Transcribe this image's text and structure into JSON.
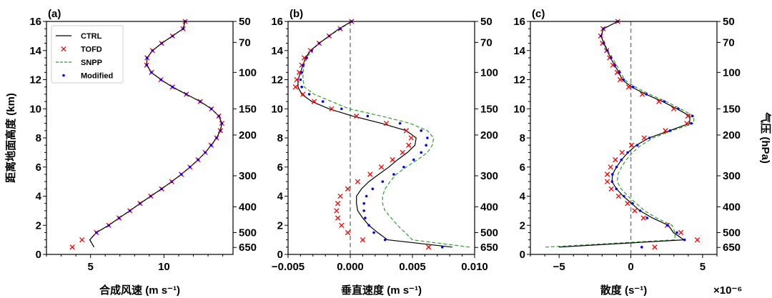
{
  "chart_data": {
    "type": "line",
    "heights_km": [
      0.5,
      1.0,
      1.5,
      2.0,
      2.5,
      3.0,
      3.5,
      4.0,
      4.5,
      5.0,
      5.5,
      6.0,
      6.5,
      7.0,
      7.5,
      8.0,
      8.5,
      9.0,
      9.5,
      10.0,
      10.5,
      11.0,
      11.5,
      12.0,
      12.5,
      13.0,
      13.5,
      14.0,
      14.5,
      15.0,
      15.5,
      16.0
    ],
    "legend": {
      "placement": "top-left",
      "entries": [
        {
          "name": "CTRL",
          "style": "line",
          "color": "#000000"
        },
        {
          "name": "TOFD",
          "style": "x-marker",
          "color": "#ff0000"
        },
        {
          "name": "SNPP",
          "style": "dashed",
          "color": "#2ca02c"
        },
        {
          "name": "Modified",
          "style": "dot",
          "color": "#0000ff"
        }
      ]
    },
    "ylabel": "距离地面高度 (km)",
    "y2label": "气压 (hPa)",
    "ylim": [
      0,
      16
    ],
    "yticks": [
      {
        "v": 0,
        "label": "0"
      },
      {
        "v": 2,
        "label": "2"
      },
      {
        "v": 4,
        "label": "4"
      },
      {
        "v": 6,
        "label": "6"
      },
      {
        "v": 8,
        "label": "8"
      },
      {
        "v": 10,
        "label": "10"
      },
      {
        "v": 12,
        "label": "12"
      },
      {
        "v": 14,
        "label": "14"
      },
      {
        "v": 16,
        "label": "16"
      }
    ],
    "pressure_ticks": [
      {
        "h": 16,
        "label": "50"
      },
      {
        "h": 14.56,
        "label": "70"
      },
      {
        "h": 12.5,
        "label": "100"
      },
      {
        "h": 10.0,
        "label": "150"
      },
      {
        "h": 8.2,
        "label": "200"
      },
      {
        "h": 5.4,
        "label": "300"
      },
      {
        "h": 3.27,
        "label": "400"
      },
      {
        "h": 1.5,
        "label": "500"
      },
      {
        "h": 0.48,
        "label": "650"
      }
    ],
    "panels": [
      {
        "label": "(a)",
        "xlabel": "合成风速 (m s⁻¹)",
        "xlim": [
          2.0,
          14.7
        ],
        "xminor": 1,
        "zero_line": false,
        "xticks": [
          {
            "v": 5,
            "label": "5"
          },
          {
            "v": 10,
            "label": "10"
          }
        ],
        "series": {
          "CTRL": [
            5.24,
            4.95,
            5.4,
            6.24,
            6.94,
            7.68,
            8.37,
            9.1,
            9.84,
            10.53,
            11.18,
            11.77,
            12.32,
            12.81,
            13.21,
            13.58,
            13.84,
            13.94,
            13.73,
            13.23,
            12.47,
            11.52,
            10.58,
            9.79,
            9.15,
            8.82,
            8.85,
            9.22,
            9.84,
            10.58,
            11.3,
            11.44
          ],
          "TOFD": [
            3.76,
            4.42,
            5.4,
            6.24,
            6.94,
            7.68,
            8.37,
            9.1,
            9.84,
            10.53,
            11.18,
            11.77,
            12.32,
            12.81,
            13.21,
            13.58,
            13.84,
            13.94,
            13.73,
            13.23,
            12.47,
            11.52,
            10.58,
            9.79,
            9.15,
            8.82,
            8.85,
            9.22,
            9.84,
            10.58,
            11.3,
            11.44
          ],
          "SNPP": [
            5.24,
            4.95,
            5.4,
            6.24,
            6.94,
            7.68,
            8.37,
            9.1,
            9.84,
            10.53,
            11.18,
            11.77,
            12.32,
            12.81,
            13.21,
            13.58,
            13.84,
            13.94,
            13.73,
            13.23,
            12.47,
            11.52,
            10.58,
            9.79,
            9.15,
            8.82,
            8.85,
            9.22,
            9.84,
            10.58,
            11.3,
            11.44
          ],
          "Modified": [
            null,
            null,
            5.4,
            6.24,
            6.94,
            7.68,
            8.37,
            9.1,
            9.84,
            10.53,
            11.18,
            11.77,
            12.32,
            12.81,
            13.21,
            13.58,
            13.84,
            13.94,
            13.73,
            13.23,
            12.47,
            11.52,
            10.58,
            9.79,
            9.15,
            8.82,
            8.85,
            9.22,
            9.84,
            10.58,
            11.3,
            11.44
          ]
        }
      },
      {
        "label": "(b)",
        "xlabel": "垂直速度 (m s⁻¹)",
        "xlim": [
          -0.005,
          0.01
        ],
        "xminor": 0.001,
        "zero_line": true,
        "xticks": [
          {
            "v": -0.005,
            "label": "−0.005"
          },
          {
            "v": 0,
            "label": "0.000"
          },
          {
            "v": 0.005,
            "label": "0.005"
          },
          {
            "v": 0.01,
            "label": "0.010"
          }
        ],
        "series": {
          "CTRL": [
            0.0082,
            0.003,
            0.0022,
            0.0015,
            0.001,
            0.0006,
            0.0005,
            0.0005,
            0.0009,
            0.0015,
            0.0023,
            0.0031,
            0.0038,
            0.0046,
            0.0052,
            0.0053,
            0.0045,
            0.0025,
            0.0002,
            -0.0017,
            -0.0031,
            -0.0039,
            -0.0042,
            -0.0042,
            -0.004,
            -0.0038,
            -0.0036,
            -0.0032,
            -0.0025,
            -0.0017,
            -0.0009,
            0.0001
          ],
          "TOFD": [
            0.0063,
            0.001,
            -0.0002,
            -0.0007,
            -0.001,
            -0.0011,
            -0.001,
            -0.0008,
            -0.0002,
            0.0006,
            0.0016,
            0.0025,
            0.0034,
            0.0042,
            0.0047,
            0.0049,
            0.0045,
            0.0029,
            0.0005,
            -0.0015,
            -0.0029,
            -0.0038,
            -0.0044,
            -0.0043,
            -0.0041,
            -0.0039,
            -0.0037,
            -0.0032,
            -0.0025,
            -0.0017,
            -0.0008,
            0.0001
          ],
          "SNPP": [
            0.0096,
            0.005,
            0.0044,
            0.0038,
            0.0033,
            0.0028,
            0.0026,
            0.0026,
            0.0028,
            0.0032,
            0.0037,
            0.0045,
            0.0054,
            0.0062,
            0.0066,
            0.0067,
            0.0062,
            0.0048,
            0.0025,
            -0.0001,
            -0.0015,
            -0.0029,
            -0.0037,
            -0.0038,
            -0.0038,
            -0.0037,
            -0.0035,
            -0.0031,
            -0.0025,
            -0.0017,
            -0.0008,
            0.0001
          ],
          "Modified": [
            0.0074,
            0.0028,
            0.0019,
            0.0015,
            0.0012,
            0.0011,
            0.0011,
            0.0013,
            0.0018,
            0.0026,
            0.0035,
            0.0043,
            0.0051,
            0.0057,
            0.0061,
            0.0062,
            0.0057,
            0.004,
            0.0014,
            -0.0007,
            -0.0022,
            -0.0033,
            -0.0039,
            -0.004,
            -0.0039,
            -0.0038,
            -0.0035,
            -0.0031,
            -0.0025,
            -0.0017,
            -0.0008,
            0.0001
          ]
        }
      },
      {
        "label": "(c)",
        "xlabel": "散度 (s⁻¹)",
        "xscale_label": "×10⁻⁶",
        "xlim": [
          -7,
          6
        ],
        "xminor": 1,
        "zero_line": true,
        "xticks": [
          {
            "v": -5,
            "label": "−5"
          },
          {
            "v": 0,
            "label": "0"
          },
          {
            "v": 5,
            "label": "5"
          }
        ],
        "series": {
          "CTRL": [
            -5.02,
            3.7,
            2.96,
            2.62,
            1.51,
            0.63,
            0.05,
            -0.53,
            -1.0,
            -1.31,
            -1.28,
            -1.0,
            -0.65,
            -0.2,
            0.38,
            1.26,
            2.71,
            4.09,
            4.12,
            3.21,
            2.21,
            1.05,
            0.05,
            -0.61,
            -0.83,
            -1.15,
            -1.41,
            -1.66,
            -1.88,
            -2.08,
            -1.91,
            -0.91
          ],
          "TOFD": [
            1.66,
            4.63,
            3.49,
            2.54,
            0.88,
            0.27,
            -0.23,
            -0.85,
            -1.36,
            -1.64,
            -1.64,
            -1.41,
            -1.08,
            -0.61,
            0.05,
            0.93,
            2.41,
            3.9,
            3.97,
            2.99,
            1.96,
            0.8,
            -0.15,
            -0.75,
            -0.95,
            -1.26,
            -1.48,
            -1.69,
            -1.98,
            -2.11,
            -1.94,
            -0.91
          ],
          "SNPP": [
            -5.96,
            3.07,
            3.07,
            2.87,
            1.79,
            0.96,
            0.38,
            -0.2,
            -0.68,
            -0.95,
            -0.9,
            -0.65,
            -0.32,
            0.13,
            0.71,
            1.55,
            2.87,
            4.37,
            4.4,
            3.46,
            2.46,
            1.3,
            0.3,
            -0.45,
            -0.7,
            -1.0,
            -1.3,
            -1.6,
            -1.85,
            -2.08,
            -1.91,
            -0.91
          ],
          "Modified": [
            0.76,
            3.74,
            3.21,
            2.54,
            1.13,
            0.65,
            0.12,
            -0.48,
            -1.01,
            -1.31,
            -1.28,
            -1.0,
            -0.66,
            -0.22,
            0.45,
            1.3,
            2.74,
            4.22,
            4.29,
            3.31,
            2.33,
            1.08,
            0.15,
            -0.51,
            -0.81,
            -1.11,
            -1.38,
            -1.64,
            -1.88,
            -2.08,
            -1.91,
            -0.91
          ]
        }
      }
    ]
  }
}
